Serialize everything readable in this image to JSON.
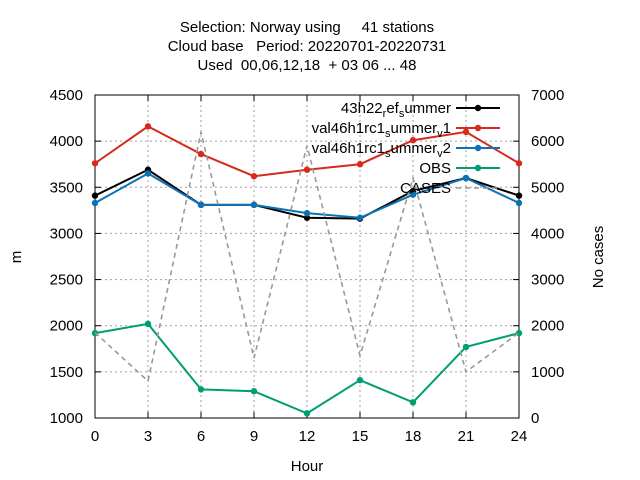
{
  "chart_data": {
    "type": "line",
    "title_lines": [
      "Selection: Norway using     41 stations",
      "Cloud base   Period: 20220701-20220731",
      "Used  00,06,12,18  + 03 06 ... 48"
    ],
    "xlabel": "Hour",
    "ylabel": "m",
    "y2label": "No cases",
    "xlim": [
      0,
      24
    ],
    "ylim": [
      1000,
      4500
    ],
    "y2lim": [
      0,
      7000
    ],
    "x_ticks": [
      0,
      3,
      6,
      9,
      12,
      15,
      18,
      21,
      24
    ],
    "y_ticks": [
      1000,
      1500,
      2000,
      2500,
      3000,
      3500,
      4000,
      4500
    ],
    "y2_ticks": [
      0,
      1000,
      2000,
      3000,
      4000,
      5000,
      6000,
      7000
    ],
    "grid": true,
    "legend_position": "top-right",
    "x": [
      0,
      3,
      6,
      9,
      12,
      15,
      18,
      21,
      24
    ],
    "series": [
      {
        "name_parts": [
          [
            "43h22",
            "normal"
          ],
          [
            "r",
            "sub"
          ],
          [
            "ef",
            "normal"
          ],
          [
            "s",
            "sub"
          ],
          [
            "ummer",
            "normal"
          ]
        ],
        "color": "#000000",
        "axis": "y",
        "values": [
          3410,
          3690,
          3310,
          3310,
          3170,
          3160,
          3460,
          3600,
          3410
        ]
      },
      {
        "name_parts": [
          [
            "val46h1rc1",
            "normal"
          ],
          [
            "s",
            "sub"
          ],
          [
            "ummer",
            "normal"
          ],
          [
            "v",
            "sub"
          ],
          [
            "1",
            "normal"
          ]
        ],
        "color": "#d62a1c",
        "axis": "y",
        "values": [
          3760,
          4160,
          3860,
          3620,
          3690,
          3750,
          4010,
          4100,
          3760
        ]
      },
      {
        "name_parts": [
          [
            "val46h1rc1",
            "normal"
          ],
          [
            "s",
            "sub"
          ],
          [
            "ummer",
            "normal"
          ],
          [
            "v",
            "sub"
          ],
          [
            "2",
            "normal"
          ]
        ],
        "color": "#0b72b5",
        "axis": "y",
        "values": [
          3330,
          3650,
          3310,
          3310,
          3220,
          3170,
          3420,
          3600,
          3330
        ]
      },
      {
        "name_parts": [
          [
            "OBS",
            "normal"
          ]
        ],
        "color": "#009e73",
        "axis": "y",
        "values": [
          1920,
          2020,
          1310,
          1290,
          1050,
          1410,
          1170,
          1770,
          1920
        ]
      },
      {
        "name_parts": [
          [
            "CASES",
            "normal"
          ]
        ],
        "color": "#999999",
        "axis": "y2",
        "dashed": true,
        "values": [
          1850,
          800,
          6200,
          1300,
          5900,
          1350,
          5200,
          1000,
          1850
        ]
      }
    ]
  }
}
